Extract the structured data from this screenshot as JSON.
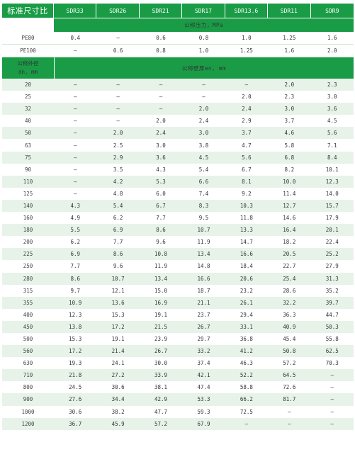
{
  "header": {
    "label": "标准尺寸比",
    "sdr": [
      "SDR33",
      "SDR26",
      "SDR21",
      "SDR17",
      "SDR13.6",
      "SDR11",
      "SDR9"
    ]
  },
  "pressure_header": "公称压力，MPa",
  "pressure_rows": [
    {
      "material": "PE80",
      "values": [
        "0.4",
        "—",
        "0.6",
        "0.8",
        "1.0",
        "1.25",
        "1.6"
      ]
    },
    {
      "material": "PE100",
      "values": [
        "—",
        "0.6",
        "0.8",
        "1.0",
        "1.25",
        "1.6",
        "2.0"
      ]
    }
  ],
  "dn_header": {
    "line1": "公称外径",
    "line2": "dn, mm"
  },
  "wall_header": "公称壁厚en, mm",
  "rows": [
    {
      "dn": "20",
      "values": [
        "–",
        "–",
        "–",
        "–",
        "–",
        "2.0",
        "2.3"
      ]
    },
    {
      "dn": "25",
      "values": [
        "–",
        "–",
        "–",
        "–",
        "2.0",
        "2.3",
        "3.0"
      ]
    },
    {
      "dn": "32",
      "values": [
        "–",
        "–",
        "–",
        "2.0",
        "2.4",
        "3.0",
        "3.6"
      ]
    },
    {
      "dn": "40",
      "values": [
        "–",
        "–",
        "2.0",
        "2.4",
        "2.9",
        "3.7",
        "4.5"
      ]
    },
    {
      "dn": "50",
      "values": [
        "–",
        "2.0",
        "2.4",
        "3.0",
        "3.7",
        "4.6",
        "5.6"
      ]
    },
    {
      "dn": "63",
      "values": [
        "–",
        "2.5",
        "3.0",
        "3.8",
        "4.7",
        "5.8",
        "7.1"
      ]
    },
    {
      "dn": "75",
      "values": [
        "–",
        "2.9",
        "3.6",
        "4.5",
        "5.6",
        "6.8",
        "8.4"
      ]
    },
    {
      "dn": "90",
      "values": [
        "–",
        "3.5",
        "4.3",
        "5.4",
        "6.7",
        "8.2",
        "10.1"
      ]
    },
    {
      "dn": "110",
      "values": [
        "–",
        "4.2",
        "5.3",
        "6.6",
        "8.1",
        "10.0",
        "12.3"
      ]
    },
    {
      "dn": "125",
      "values": [
        "–",
        "4.8",
        "6.0",
        "7.4",
        "9.2",
        "11.4",
        "14.0"
      ]
    },
    {
      "dn": "140",
      "values": [
        "4.3",
        "5.4",
        "6.7",
        "8.3",
        "10.3",
        "12.7",
        "15.7"
      ]
    },
    {
      "dn": "160",
      "values": [
        "4.9",
        "6.2",
        "7.7",
        "9.5",
        "11.8",
        "14.6",
        "17.9"
      ]
    },
    {
      "dn": "180",
      "values": [
        "5.5",
        "6.9",
        "8.6",
        "10.7",
        "13.3",
        "16.4",
        "20.1"
      ]
    },
    {
      "dn": "200",
      "values": [
        "6.2",
        "7.7",
        "9.6",
        "11.9",
        "14.7",
        "18.2",
        "22.4"
      ]
    },
    {
      "dn": "225",
      "values": [
        "6.9",
        "8.6",
        "10.8",
        "13.4",
        "16.6",
        "20.5",
        "25.2"
      ]
    },
    {
      "dn": "250",
      "values": [
        "7.7",
        "9.6",
        "11.9",
        "14.8",
        "18.4",
        "22.7",
        "27.9"
      ]
    },
    {
      "dn": "280",
      "values": [
        "8.6",
        "10.7",
        "13.4",
        "16.6",
        "20.6",
        "25.4",
        "31.3"
      ]
    },
    {
      "dn": "315",
      "values": [
        "9.7",
        "12.1",
        "15.0",
        "18.7",
        "23.2",
        "28.6",
        "35.2"
      ]
    },
    {
      "dn": "355",
      "values": [
        "10.9",
        "13.6",
        "16.9",
        "21.1",
        "26.1",
        "32.2",
        "39.7"
      ]
    },
    {
      "dn": "400",
      "values": [
        "12.3",
        "15.3",
        "19.1",
        "23.7",
        "29.4",
        "36.3",
        "44.7"
      ]
    },
    {
      "dn": "450",
      "values": [
        "13.8",
        "17.2",
        "21.5",
        "26.7",
        "33.1",
        "40.9",
        "50.3"
      ]
    },
    {
      "dn": "500",
      "values": [
        "15.3",
        "19.1",
        "23.9",
        "29.7",
        "36.8",
        "45.4",
        "55.8"
      ]
    },
    {
      "dn": "560",
      "values": [
        "17.2",
        "21.4",
        "26.7",
        "33.2",
        "41.2",
        "50.8",
        "62.5"
      ]
    },
    {
      "dn": "630",
      "values": [
        "19.3",
        "24.1",
        "30.0",
        "37.4",
        "46.3",
        "57.2",
        "70.3"
      ]
    },
    {
      "dn": "710",
      "values": [
        "21.8",
        "27.2",
        "33.9",
        "42.1",
        "52.2",
        "64.5",
        "–"
      ]
    },
    {
      "dn": "800",
      "values": [
        "24.5",
        "30.6",
        "38.1",
        "47.4",
        "58.8",
        "72.6",
        "–"
      ]
    },
    {
      "dn": "900",
      "values": [
        "27.6",
        "34.4",
        "42.9",
        "53.3",
        "66.2",
        "81.7",
        "–"
      ]
    },
    {
      "dn": "1000",
      "values": [
        "30.6",
        "38.2",
        "47.7",
        "59.3",
        "72.5",
        "–",
        "–"
      ]
    },
    {
      "dn": "1200",
      "values": [
        "36.7",
        "45.9",
        "57.2",
        "67.9",
        "–",
        "–",
        "–"
      ]
    }
  ],
  "colors": {
    "header_green": "#1a9c47",
    "stripe": "#e7f3e9"
  }
}
